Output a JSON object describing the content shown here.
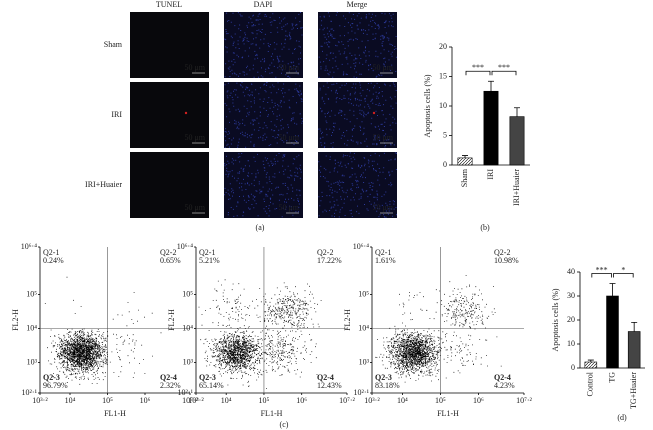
{
  "panel_a": {
    "columns": [
      "TUNEL",
      "DAPI",
      "Merge"
    ],
    "rows": [
      "Sham",
      "IRI",
      "IRI+Huaier"
    ],
    "scale_bar": "50 μm"
  },
  "panel_labels": [
    "(a)",
    "(b)",
    "(c)",
    "(d)"
  ],
  "chart_data": [
    {
      "type": "bar",
      "ylabel": "Apoptosis cells (%)",
      "categories": [
        "Sham",
        "IRI",
        "IRI+Huaier"
      ],
      "values": [
        1.2,
        12.5,
        8.2
      ],
      "errors": [
        0.4,
        1.7,
        1.5
      ],
      "colors": [
        "#ffffff",
        "#000000",
        "#444444"
      ],
      "hatch": [
        true,
        false,
        false
      ],
      "ylim": [
        0,
        20
      ],
      "yticks": [
        0,
        5,
        10,
        15,
        20
      ],
      "significance": [
        {
          "between": [
            "Sham",
            "IRI"
          ],
          "label": "***"
        },
        {
          "between": [
            "IRI",
            "IRI+Huaier"
          ],
          "label": "***"
        }
      ]
    },
    {
      "type": "scatter",
      "xlabel": "FL1-H",
      "ylabel": "FL2-H",
      "xscale": "log",
      "yscale": "log",
      "xlim": [
        1584.89,
        15848931.92
      ],
      "ylim": [
        125.89,
        2511886.43
      ],
      "xticks": [
        {
          "value": 1584.89,
          "label": "10³·²"
        },
        {
          "value": 10000,
          "label": "10⁴"
        },
        {
          "value": 100000,
          "label": "10⁵"
        },
        {
          "value": 1000000,
          "label": "10⁶"
        },
        {
          "value": 15848931.92,
          "label": "10⁷·²"
        }
      ],
      "yticks": [
        {
          "value": 125.89,
          "label": "10²·¹"
        },
        {
          "value": 1000,
          "label": "10³"
        },
        {
          "value": 10000,
          "label": "10⁴"
        },
        {
          "value": 100000,
          "label": "10⁵"
        },
        {
          "value": 2511886.43,
          "label": "10⁶·⁴"
        }
      ],
      "gates": {
        "x": 100000,
        "y": 10000
      },
      "quadrants": {
        "names": [
          "Q2-1",
          "Q2-2",
          "Q2-3",
          "Q2-4"
        ],
        "values": [
          0.24,
          0.65,
          96.79,
          2.32
        ],
        "value_labels": [
          "0.24%",
          "0.65%",
          "96.79%",
          "2.32%"
        ]
      }
    },
    {
      "type": "scatter",
      "xlabel": "FL1-H",
      "ylabel": "FL2-H",
      "xscale": "log",
      "yscale": "log",
      "xlim": [
        1584.89,
        15848931.92
      ],
      "ylim": [
        125.89,
        2511886.43
      ],
      "xticks": [
        {
          "value": 1584.89,
          "label": "10³·²"
        },
        {
          "value": 10000,
          "label": "10⁴"
        },
        {
          "value": 100000,
          "label": "10⁵"
        },
        {
          "value": 1000000,
          "label": "10⁶"
        },
        {
          "value": 15848931.92,
          "label": "10⁷·²"
        }
      ],
      "yticks": [
        {
          "value": 125.89,
          "label": "10²·¹"
        },
        {
          "value": 1000,
          "label": "10³"
        },
        {
          "value": 10000,
          "label": "10⁴"
        },
        {
          "value": 100000,
          "label": "10⁵"
        },
        {
          "value": 2511886.43,
          "label": "10⁶·⁴"
        }
      ],
      "gates": {
        "x": 100000,
        "y": 10000
      },
      "quadrants": {
        "names": [
          "Q2-1",
          "Q2-2",
          "Q2-3",
          "Q2-4"
        ],
        "values": [
          5.21,
          17.22,
          65.14,
          12.43
        ],
        "value_labels": [
          "5.21%",
          "17.22%",
          "65.14%",
          "12.43%"
        ]
      }
    },
    {
      "type": "scatter",
      "xlabel": "FL1-H",
      "ylabel": "FL2-H",
      "xscale": "log",
      "yscale": "log",
      "xlim": [
        1584.89,
        15848931.92
      ],
      "ylim": [
        125.89,
        2511886.43
      ],
      "xticks": [
        {
          "value": 1584.89,
          "label": "10³·²"
        },
        {
          "value": 10000,
          "label": "10⁴"
        },
        {
          "value": 100000,
          "label": "10⁵"
        },
        {
          "value": 1000000,
          "label": "10⁶"
        },
        {
          "value": 15848931.92,
          "label": "10⁷·²"
        }
      ],
      "yticks": [
        {
          "value": 125.89,
          "label": "10²·¹"
        },
        {
          "value": 1000,
          "label": "10³"
        },
        {
          "value": 10000,
          "label": "10⁴"
        },
        {
          "value": 100000,
          "label": "10⁵"
        },
        {
          "value": 2511886.43,
          "label": "10⁶·⁴"
        }
      ],
      "gates": {
        "x": 100000,
        "y": 10000
      },
      "quadrants": {
        "names": [
          "Q2-1",
          "Q2-2",
          "Q2-3",
          "Q2-4"
        ],
        "values": [
          1.61,
          10.98,
          83.18,
          4.23
        ],
        "value_labels": [
          "1.61%",
          "10.98%",
          "83.18%",
          "4.23%"
        ]
      }
    },
    {
      "type": "bar",
      "ylabel": "Apoptosis cells (%)",
      "categories": [
        "Control",
        "TG",
        "TG+Huaier"
      ],
      "values": [
        2.5,
        30,
        15.2
      ],
      "errors": [
        0.8,
        5.2,
        3.8
      ],
      "colors": [
        "#ffffff",
        "#000000",
        "#444444"
      ],
      "hatch": [
        true,
        false,
        false
      ],
      "ylim": [
        0,
        40
      ],
      "yticks": [
        0,
        10,
        20,
        30,
        40
      ],
      "significance": [
        {
          "between": [
            "Control",
            "TG"
          ],
          "label": "***"
        },
        {
          "between": [
            "TG",
            "TG+Huaier"
          ],
          "label": "*"
        }
      ]
    }
  ]
}
